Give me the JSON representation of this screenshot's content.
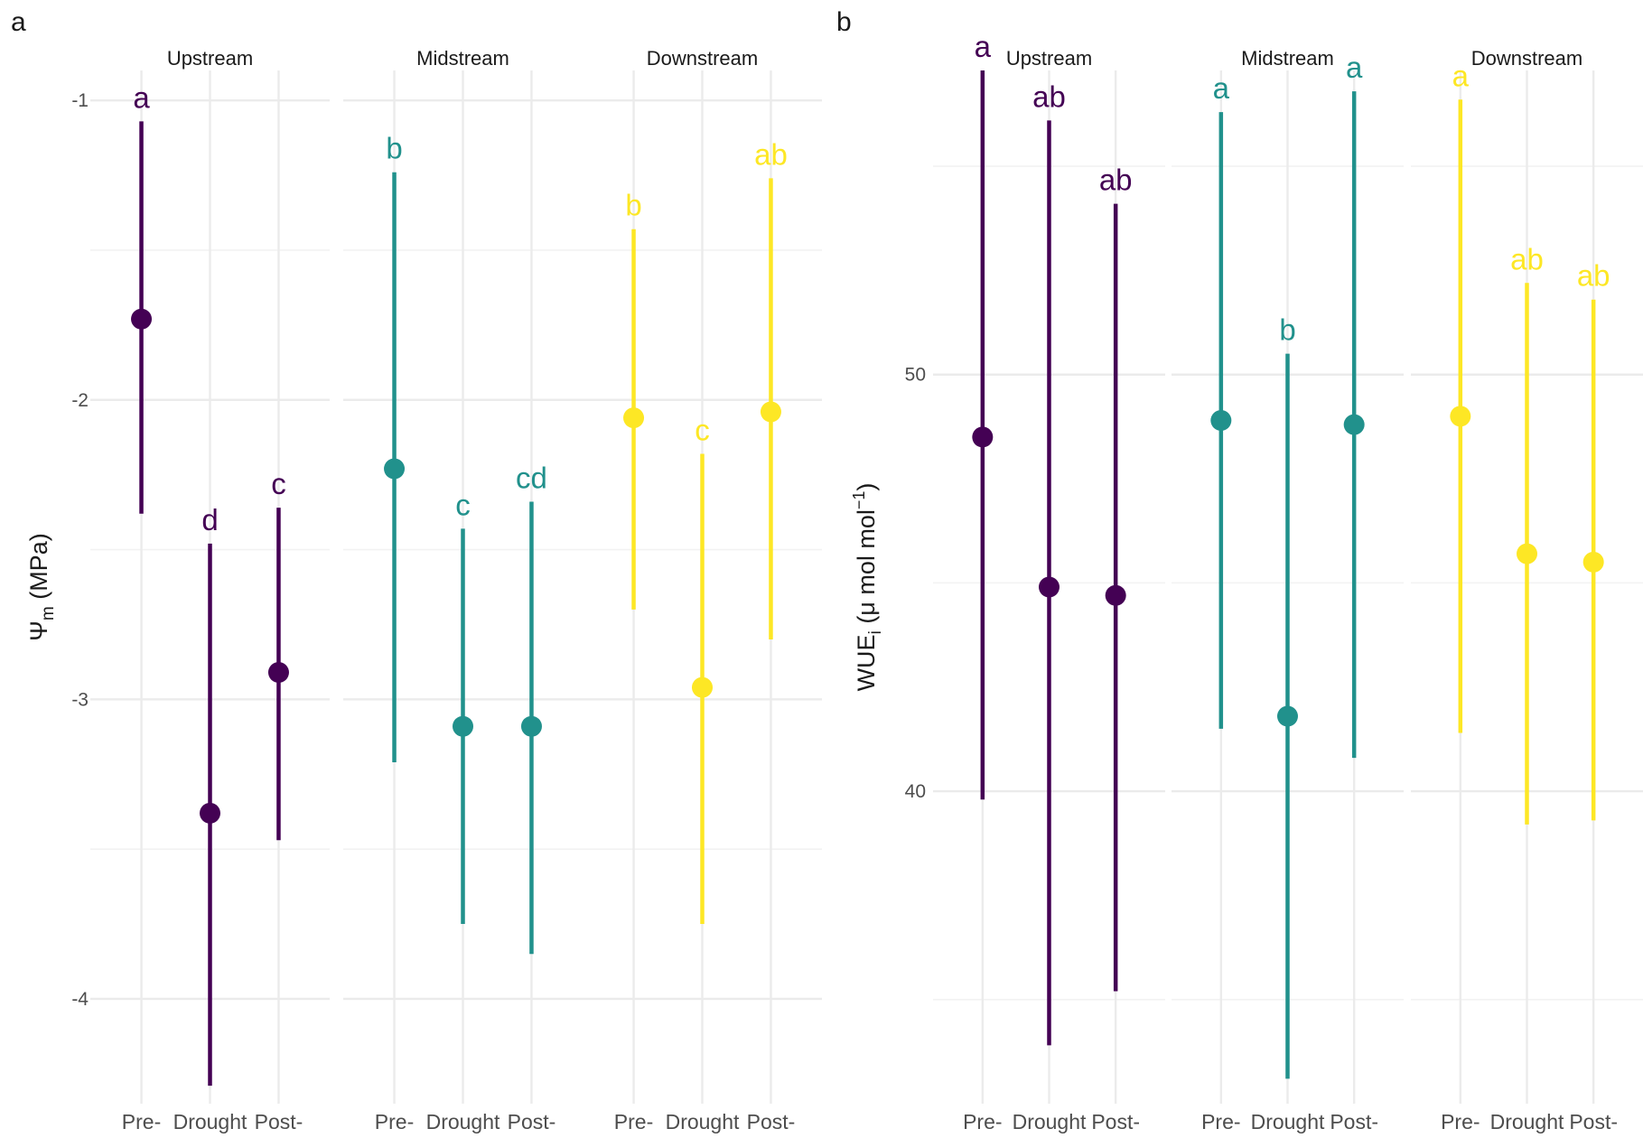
{
  "chart_data": [
    {
      "panel": "a",
      "type": "pointrange",
      "ylabel": "Ψm (MPa)",
      "ylabel_main": "Ψ",
      "ylabel_sub": "m",
      "ylabel_rest": " (MPa)",
      "ylim": [
        -4.35,
        -0.9
      ],
      "yticks": [
        -1,
        -2,
        -3,
        -4
      ],
      "categories": [
        "Pre-",
        "Drought",
        "Post-"
      ],
      "facets": [
        {
          "name": "Upstream",
          "color": "#440154",
          "points": [
            {
              "x": "Pre-",
              "y": -1.73,
              "ymin": -2.38,
              "ymax": -1.07,
              "letter": "a"
            },
            {
              "x": "Drought",
              "y": -3.38,
              "ymin": -4.29,
              "ymax": -2.48,
              "letter": "d"
            },
            {
              "x": "Post-",
              "y": -2.91,
              "ymin": -3.47,
              "ymax": -2.36,
              "letter": "c"
            }
          ]
        },
        {
          "name": "Midstream",
          "color": "#21918c",
          "points": [
            {
              "x": "Pre-",
              "y": -2.23,
              "ymin": -3.21,
              "ymax": -1.24,
              "letter": "b"
            },
            {
              "x": "Drought",
              "y": -3.09,
              "ymin": -3.75,
              "ymax": -2.43,
              "letter": "c"
            },
            {
              "x": "Post-",
              "y": -3.09,
              "ymin": -3.85,
              "ymax": -2.34,
              "letter": "cd"
            }
          ]
        },
        {
          "name": "Downstream",
          "color": "#fde725",
          "points": [
            {
              "x": "Pre-",
              "y": -2.06,
              "ymin": -2.7,
              "ymax": -1.43,
              "letter": "b"
            },
            {
              "x": "Drought",
              "y": -2.96,
              "ymin": -3.75,
              "ymax": -2.18,
              "letter": "c"
            },
            {
              "x": "Post-",
              "y": -2.04,
              "ymin": -2.8,
              "ymax": -1.26,
              "letter": "ab"
            }
          ]
        }
      ]
    },
    {
      "panel": "b",
      "type": "pointrange",
      "ylabel": "WUEi (μ mol mol⁻¹)",
      "ylabel_main": "WUE",
      "ylabel_sub": "i",
      "ylabel_rest": " (μ mol mol",
      "ylabel_sup": "−1",
      "ylabel_end": ")",
      "ylim": [
        32.5,
        57.3
      ],
      "yticks": [
        40,
        50
      ],
      "categories": [
        "Pre-",
        "Drought",
        "Post-"
      ],
      "facets": [
        {
          "name": "Upstream",
          "color": "#440154",
          "points": [
            {
              "x": "Pre-",
              "y": 48.5,
              "ymin": 39.8,
              "ymax": 57.3,
              "letter": "a"
            },
            {
              "x": "Drought",
              "y": 44.9,
              "ymin": 33.9,
              "ymax": 56.1,
              "letter": "ab"
            },
            {
              "x": "Post-",
              "y": 44.7,
              "ymin": 35.2,
              "ymax": 54.1,
              "letter": "ab"
            }
          ]
        },
        {
          "name": "Midstream",
          "color": "#21918c",
          "points": [
            {
              "x": "Pre-",
              "y": 48.9,
              "ymin": 41.5,
              "ymax": 56.3,
              "letter": "a"
            },
            {
              "x": "Drought",
              "y": 41.8,
              "ymin": 33.1,
              "ymax": 50.5,
              "letter": "b"
            },
            {
              "x": "Post-",
              "y": 48.8,
              "ymin": 40.8,
              "ymax": 56.8,
              "letter": "a"
            }
          ]
        },
        {
          "name": "Downstream",
          "color": "#fde725",
          "points": [
            {
              "x": "Pre-",
              "y": 49.0,
              "ymin": 41.4,
              "ymax": 56.6,
              "letter": "a"
            },
            {
              "x": "Drought",
              "y": 45.7,
              "ymin": 39.2,
              "ymax": 52.2,
              "letter": "ab"
            },
            {
              "x": "Post-",
              "y": 45.5,
              "ymin": 39.3,
              "ymax": 51.8,
              "letter": "ab"
            }
          ]
        }
      ]
    }
  ]
}
